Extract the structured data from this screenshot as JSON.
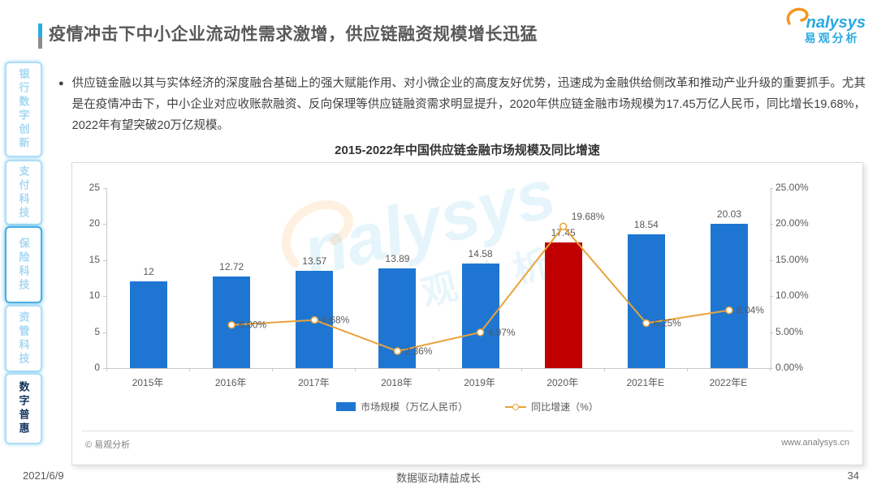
{
  "page": {
    "title": "疫情冲击下中小企业流动性需求激增，供应链融资规模增长迅猛",
    "date": "2021/6/9",
    "motto": "数据驱动精益成长",
    "page_number": "34"
  },
  "logo": {
    "brand_latin": "nalysys",
    "brand_cn": "易观分析"
  },
  "sidebar": {
    "items": [
      {
        "label": "银行数字创新",
        "state": "inactive"
      },
      {
        "label": "支付科技",
        "state": "inactive"
      },
      {
        "label": "保险科技",
        "state": "highlighted"
      },
      {
        "label": "资管科技",
        "state": "inactive"
      },
      {
        "label": "数字普惠",
        "state": "active"
      }
    ]
  },
  "bullet": {
    "text": "供应链金融以其与实体经济的深度融合基础上的强大赋能作用、对小微企业的高度友好优势，迅速成为金融供给侧改革和推动产业升级的重要抓手。尤其是在疫情冲击下，中小企业对应收账款融资、反向保理等供应链融资需求明显提升，2020年供应链金融市场规模为17.45万亿人民币，同比增长19.68%，2022年有望突破20万亿规模。"
  },
  "chart_data": {
    "type": "bar",
    "title": "2015-2022年中国供应链金融市场规模及同比增速",
    "categories": [
      "2015年",
      "2016年",
      "2017年",
      "2018年",
      "2019年",
      "2020年",
      "2021年E",
      "2022年E"
    ],
    "series": [
      {
        "name": "市场规模（万亿人民币）",
        "type": "bar",
        "values": [
          12,
          12.72,
          13.57,
          13.89,
          14.58,
          17.45,
          18.54,
          20.03
        ],
        "labels": [
          "12",
          "12.72",
          "13.57",
          "13.89",
          "14.58",
          "17.45",
          "18.54",
          "20.03"
        ],
        "highlight_index": 5
      },
      {
        "name": "同比增速（%）",
        "type": "line",
        "values": [
          null,
          6.0,
          6.68,
          2.36,
          4.97,
          19.68,
          6.25,
          8.04
        ],
        "labels": [
          "",
          "6.00%",
          "6.68%",
          "2.36%",
          "4.97%",
          "19.68%",
          "6.25%",
          "8.04%"
        ]
      }
    ],
    "left_axis": {
      "ticks": [
        "0",
        "5",
        "10",
        "15",
        "20",
        "25"
      ],
      "min": 0,
      "max": 25
    },
    "right_axis": {
      "ticks": [
        "0.00%",
        "5.00%",
        "10.00%",
        "15.00%",
        "20.00%",
        "25.00%"
      ],
      "min": 0,
      "max": 25
    },
    "legend_position": "bottom",
    "grid": false
  },
  "chart_footer": {
    "source": "© 易观分析",
    "site": "www.analysys.cn"
  },
  "colors": {
    "bar_blue": "#1E76D2",
    "bar_red": "#C00000",
    "line_orange": "#E8A33C",
    "brand_blue": "#29A9E0",
    "brand_orange": "#F7941E",
    "tab_light_blue": "#A6D8F3",
    "tab_dark_navy": "#17375E"
  }
}
